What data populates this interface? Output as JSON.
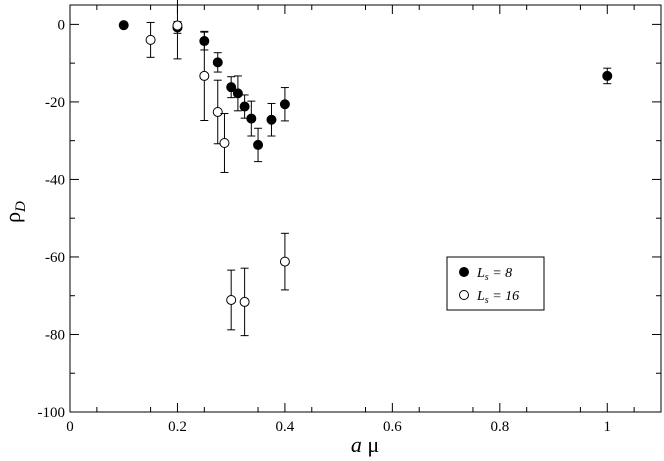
{
  "chart_data": {
    "type": "scatter",
    "title": "",
    "xlabel": {
      "italic": "a",
      "rest": " μ"
    },
    "ylabel": {
      "main": "ρ",
      "sub": "D"
    },
    "xlim": [
      0,
      1.1
    ],
    "ylim": [
      -100,
      5
    ],
    "x_ticks": [
      0,
      0.2,
      0.4,
      0.6,
      0.8,
      1
    ],
    "x_tick_labels": [
      "0",
      "0.2",
      "0.4",
      "0.6",
      "0.8",
      "1"
    ],
    "y_ticks": [
      -100,
      -80,
      -60,
      -40,
      -20,
      0
    ],
    "y_tick_labels": [
      "-100",
      "-80",
      "-60",
      "-40",
      "-20",
      "0"
    ],
    "grid": false,
    "legend_position": "right-middle",
    "series": [
      {
        "name": "Ls = 8",
        "legend_label": {
          "main": "L",
          "sub": "s",
          "rest": " = 8"
        },
        "marker": "filled-circle",
        "color": "#000000",
        "points": [
          {
            "x": 0.1,
            "y": -0.2,
            "err": 0
          },
          {
            "x": 0.2,
            "y": -0.8,
            "err": 1.5
          },
          {
            "x": 0.25,
            "y": -4.3,
            "err": 2.3
          },
          {
            "x": 0.275,
            "y": -9.8,
            "err": 2.5
          },
          {
            "x": 0.3,
            "y": -16.2,
            "err": 2.7
          },
          {
            "x": 0.3125,
            "y": -17.8,
            "err": 4.5
          },
          {
            "x": 0.325,
            "y": -21.2,
            "err": 3.0
          },
          {
            "x": 0.3375,
            "y": -24.3,
            "err": 4.5
          },
          {
            "x": 0.35,
            "y": -31.1,
            "err": 4.3
          },
          {
            "x": 0.375,
            "y": -24.6,
            "err": 4.2
          },
          {
            "x": 0.4,
            "y": -20.6,
            "err": 4.3
          },
          {
            "x": 1.0,
            "y": -13.3,
            "err": 2.0
          }
        ]
      },
      {
        "name": "Ls = 16",
        "legend_label": {
          "main": "L",
          "sub": "s",
          "rest": " = 16"
        },
        "marker": "open-circle",
        "color": "#000000",
        "points": [
          {
            "x": 0.15,
            "y": -4.0,
            "err": 4.5
          },
          {
            "x": 0.2,
            "y": -0.3,
            "err": 8.6
          },
          {
            "x": 0.25,
            "y": -13.3,
            "err": 11.5
          },
          {
            "x": 0.275,
            "y": -22.6,
            "err": 8.2
          },
          {
            "x": 0.2875,
            "y": -30.6,
            "err": 7.6
          },
          {
            "x": 0.3,
            "y": -71.1,
            "err": 7.7
          },
          {
            "x": 0.325,
            "y": -71.6,
            "err": 8.7
          },
          {
            "x": 0.4,
            "y": -61.2,
            "err": 7.3
          }
        ]
      }
    ]
  }
}
